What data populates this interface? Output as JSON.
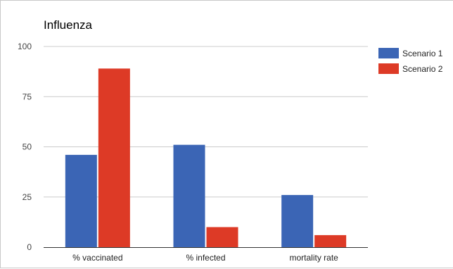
{
  "chart_data": {
    "type": "bar",
    "title": "Influenza",
    "xlabel": "",
    "ylabel": "",
    "categories": [
      "% vaccinated",
      "% infected",
      "mortality rate"
    ],
    "series": [
      {
        "name": "Scenario 1",
        "color": "#3b65b5",
        "values": [
          46,
          51,
          26
        ]
      },
      {
        "name": "Scenario 2",
        "color": "#dd3a26",
        "values": [
          89,
          10,
          6
        ]
      }
    ],
    "ylim": [
      0,
      100
    ],
    "yticks": [
      0,
      25,
      50,
      75,
      100
    ],
    "grid": true,
    "legend": "right"
  }
}
